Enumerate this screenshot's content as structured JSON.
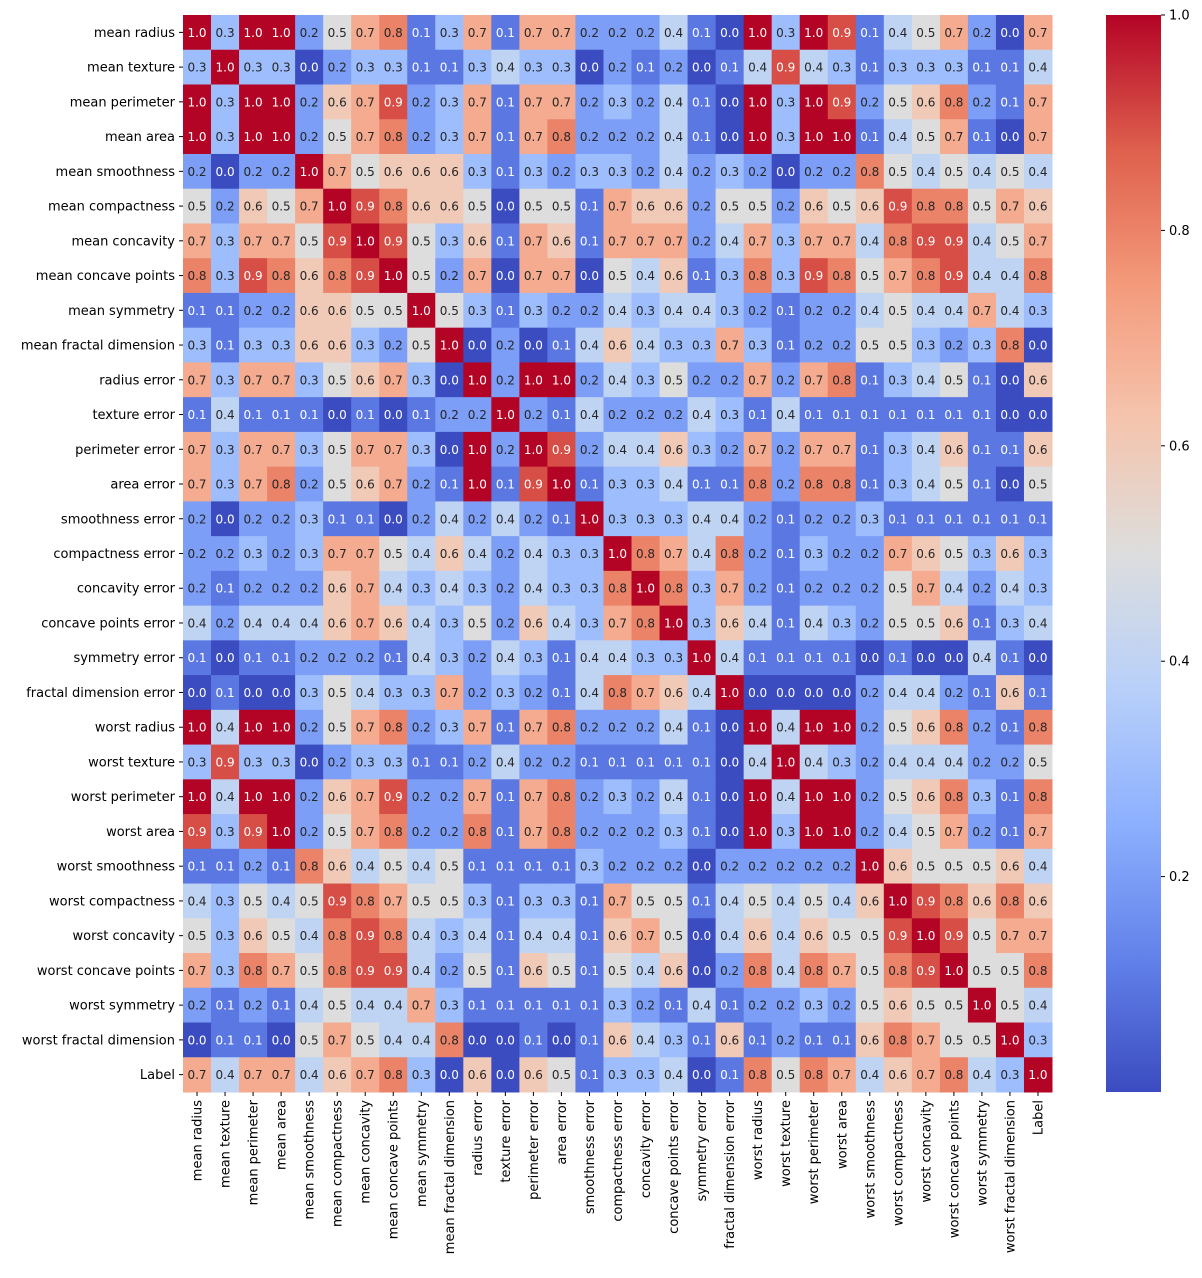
{
  "chart_data": {
    "type": "heatmap",
    "title": "",
    "colormap": "coolwarm",
    "labels": [
      "mean radius",
      "mean texture",
      "mean perimeter",
      "mean area",
      "mean smoothness",
      "mean compactness",
      "mean concavity",
      "mean concave points",
      "mean symmetry",
      "mean fractal dimension",
      "radius error",
      "texture error",
      "perimeter error",
      "area error",
      "smoothness error",
      "compactness error",
      "concavity error",
      "concave points error",
      "symmetry error",
      "fractal dimension error",
      "worst radius",
      "worst texture",
      "worst perimeter",
      "worst area",
      "worst smoothness",
      "worst compactness",
      "worst concavity",
      "worst concave points",
      "worst symmetry",
      "worst fractal dimension",
      "Label"
    ],
    "values": [
      [
        1.0,
        0.3,
        1.0,
        1.0,
        0.2,
        0.5,
        0.7,
        0.8,
        0.1,
        0.3,
        0.7,
        0.1,
        0.7,
        0.7,
        0.2,
        0.2,
        0.2,
        0.4,
        0.1,
        0.0,
        1.0,
        0.3,
        1.0,
        0.9,
        0.1,
        0.4,
        0.5,
        0.7,
        0.2,
        0.0,
        0.7
      ],
      [
        0.3,
        1.0,
        0.3,
        0.3,
        0.0,
        0.2,
        0.3,
        0.3,
        0.1,
        0.1,
        0.3,
        0.4,
        0.3,
        0.3,
        0.0,
        0.2,
        0.1,
        0.2,
        0.0,
        0.1,
        0.4,
        0.9,
        0.4,
        0.3,
        0.1,
        0.3,
        0.3,
        0.3,
        0.1,
        0.1,
        0.4
      ],
      [
        1.0,
        0.3,
        1.0,
        1.0,
        0.2,
        0.6,
        0.7,
        0.9,
        0.2,
        0.3,
        0.7,
        0.1,
        0.7,
        0.7,
        0.2,
        0.3,
        0.2,
        0.4,
        0.1,
        0.0,
        1.0,
        0.3,
        1.0,
        0.9,
        0.2,
        0.5,
        0.6,
        0.8,
        0.2,
        0.1,
        0.7
      ],
      [
        1.0,
        0.3,
        1.0,
        1.0,
        0.2,
        0.5,
        0.7,
        0.8,
        0.2,
        0.3,
        0.7,
        0.1,
        0.7,
        0.8,
        0.2,
        0.2,
        0.2,
        0.4,
        0.1,
        0.0,
        1.0,
        0.3,
        1.0,
        1.0,
        0.1,
        0.4,
        0.5,
        0.7,
        0.1,
        0.0,
        0.7
      ],
      [
        0.2,
        0.0,
        0.2,
        0.2,
        1.0,
        0.7,
        0.5,
        0.6,
        0.6,
        0.6,
        0.3,
        0.1,
        0.3,
        0.2,
        0.3,
        0.3,
        0.2,
        0.4,
        0.2,
        0.3,
        0.2,
        0.0,
        0.2,
        0.2,
        0.8,
        0.5,
        0.4,
        0.5,
        0.4,
        0.5,
        0.4
      ],
      [
        0.5,
        0.2,
        0.6,
        0.5,
        0.7,
        1.0,
        0.9,
        0.8,
        0.6,
        0.6,
        0.5,
        0.0,
        0.5,
        0.5,
        0.1,
        0.7,
        0.6,
        0.6,
        0.2,
        0.5,
        0.5,
        0.2,
        0.6,
        0.5,
        0.6,
        0.9,
        0.8,
        0.8,
        0.5,
        0.7,
        0.6
      ],
      [
        0.7,
        0.3,
        0.7,
        0.7,
        0.5,
        0.9,
        1.0,
        0.9,
        0.5,
        0.3,
        0.6,
        0.1,
        0.7,
        0.6,
        0.1,
        0.7,
        0.7,
        0.7,
        0.2,
        0.4,
        0.7,
        0.3,
        0.7,
        0.7,
        0.4,
        0.8,
        0.9,
        0.9,
        0.4,
        0.5,
        0.7
      ],
      [
        0.8,
        0.3,
        0.9,
        0.8,
        0.6,
        0.8,
        0.9,
        1.0,
        0.5,
        0.2,
        0.7,
        0.0,
        0.7,
        0.7,
        0.0,
        0.5,
        0.4,
        0.6,
        0.1,
        0.3,
        0.8,
        0.3,
        0.9,
        0.8,
        0.5,
        0.7,
        0.8,
        0.9,
        0.4,
        0.4,
        0.8
      ],
      [
        0.1,
        0.1,
        0.2,
        0.2,
        0.6,
        0.6,
        0.5,
        0.5,
        1.0,
        0.5,
        0.3,
        0.1,
        0.3,
        0.2,
        0.2,
        0.4,
        0.3,
        0.4,
        0.4,
        0.3,
        0.2,
        0.1,
        0.2,
        0.2,
        0.4,
        0.5,
        0.4,
        0.4,
        0.7,
        0.4,
        0.3
      ],
      [
        0.3,
        0.1,
        0.3,
        0.3,
        0.6,
        0.6,
        0.3,
        0.2,
        0.5,
        1.0,
        0.0,
        0.2,
        0.0,
        0.1,
        0.4,
        0.6,
        0.4,
        0.3,
        0.3,
        0.7,
        0.3,
        0.1,
        0.2,
        0.2,
        0.5,
        0.5,
        0.3,
        0.2,
        0.3,
        0.8,
        0.0
      ],
      [
        0.7,
        0.3,
        0.7,
        0.7,
        0.3,
        0.5,
        0.6,
        0.7,
        0.3,
        0.0,
        1.0,
        0.2,
        1.0,
        1.0,
        0.2,
        0.4,
        0.3,
        0.5,
        0.2,
        0.2,
        0.7,
        0.2,
        0.7,
        0.8,
        0.1,
        0.3,
        0.4,
        0.5,
        0.1,
        0.0,
        0.6
      ],
      [
        0.1,
        0.4,
        0.1,
        0.1,
        0.1,
        0.0,
        0.1,
        0.0,
        0.1,
        0.2,
        0.2,
        1.0,
        0.2,
        0.1,
        0.4,
        0.2,
        0.2,
        0.2,
        0.4,
        0.3,
        0.1,
        0.4,
        0.1,
        0.1,
        0.1,
        0.1,
        0.1,
        0.1,
        0.1,
        0.0,
        0.0
      ],
      [
        0.7,
        0.3,
        0.7,
        0.7,
        0.3,
        0.5,
        0.7,
        0.7,
        0.3,
        0.0,
        1.0,
        0.2,
        1.0,
        0.9,
        0.2,
        0.4,
        0.4,
        0.6,
        0.3,
        0.2,
        0.7,
        0.2,
        0.7,
        0.7,
        0.1,
        0.3,
        0.4,
        0.6,
        0.1,
        0.1,
        0.6
      ],
      [
        0.7,
        0.3,
        0.7,
        0.8,
        0.2,
        0.5,
        0.6,
        0.7,
        0.2,
        0.1,
        1.0,
        0.1,
        0.9,
        1.0,
        0.1,
        0.3,
        0.3,
        0.4,
        0.1,
        0.1,
        0.8,
        0.2,
        0.8,
        0.8,
        0.1,
        0.3,
        0.4,
        0.5,
        0.1,
        0.0,
        0.5
      ],
      [
        0.2,
        0.0,
        0.2,
        0.2,
        0.3,
        0.1,
        0.1,
        0.0,
        0.2,
        0.4,
        0.2,
        0.4,
        0.2,
        0.1,
        1.0,
        0.3,
        0.3,
        0.3,
        0.4,
        0.4,
        0.2,
        0.1,
        0.2,
        0.2,
        0.3,
        0.1,
        0.1,
        0.1,
        0.1,
        0.1,
        0.1
      ],
      [
        0.2,
        0.2,
        0.3,
        0.2,
        0.3,
        0.7,
        0.7,
        0.5,
        0.4,
        0.6,
        0.4,
        0.2,
        0.4,
        0.3,
        0.3,
        1.0,
        0.8,
        0.7,
        0.4,
        0.8,
        0.2,
        0.1,
        0.3,
        0.2,
        0.2,
        0.7,
        0.6,
        0.5,
        0.3,
        0.6,
        0.3
      ],
      [
        0.2,
        0.1,
        0.2,
        0.2,
        0.2,
        0.6,
        0.7,
        0.4,
        0.3,
        0.4,
        0.3,
        0.2,
        0.4,
        0.3,
        0.3,
        0.8,
        1.0,
        0.8,
        0.3,
        0.7,
        0.2,
        0.1,
        0.2,
        0.2,
        0.2,
        0.5,
        0.7,
        0.4,
        0.2,
        0.4,
        0.3
      ],
      [
        0.4,
        0.2,
        0.4,
        0.4,
        0.4,
        0.6,
        0.7,
        0.6,
        0.4,
        0.3,
        0.5,
        0.2,
        0.6,
        0.4,
        0.3,
        0.7,
        0.8,
        1.0,
        0.3,
        0.6,
        0.4,
        0.1,
        0.4,
        0.3,
        0.2,
        0.5,
        0.5,
        0.6,
        0.1,
        0.3,
        0.4
      ],
      [
        0.1,
        0.0,
        0.1,
        0.1,
        0.2,
        0.2,
        0.2,
        0.1,
        0.4,
        0.3,
        0.2,
        0.4,
        0.3,
        0.1,
        0.4,
        0.4,
        0.3,
        0.3,
        1.0,
        0.4,
        0.1,
        0.1,
        0.1,
        0.1,
        0.0,
        0.1,
        0.0,
        0.0,
        0.4,
        0.1,
        0.0
      ],
      [
        0.0,
        0.1,
        0.0,
        0.0,
        0.3,
        0.5,
        0.4,
        0.3,
        0.3,
        0.7,
        0.2,
        0.3,
        0.2,
        0.1,
        0.4,
        0.8,
        0.7,
        0.6,
        0.4,
        1.0,
        0.0,
        0.0,
        0.0,
        0.0,
        0.2,
        0.4,
        0.4,
        0.2,
        0.1,
        0.6,
        0.1
      ],
      [
        1.0,
        0.4,
        1.0,
        1.0,
        0.2,
        0.5,
        0.7,
        0.8,
        0.2,
        0.3,
        0.7,
        0.1,
        0.7,
        0.8,
        0.2,
        0.2,
        0.2,
        0.4,
        0.1,
        0.0,
        1.0,
        0.4,
        1.0,
        1.0,
        0.2,
        0.5,
        0.6,
        0.8,
        0.2,
        0.1,
        0.8
      ],
      [
        0.3,
        0.9,
        0.3,
        0.3,
        0.0,
        0.2,
        0.3,
        0.3,
        0.1,
        0.1,
        0.2,
        0.4,
        0.2,
        0.2,
        0.1,
        0.1,
        0.1,
        0.1,
        0.1,
        0.0,
        0.4,
        1.0,
        0.4,
        0.3,
        0.2,
        0.4,
        0.4,
        0.4,
        0.2,
        0.2,
        0.5
      ],
      [
        1.0,
        0.4,
        1.0,
        1.0,
        0.2,
        0.6,
        0.7,
        0.9,
        0.2,
        0.2,
        0.7,
        0.1,
        0.7,
        0.8,
        0.2,
        0.3,
        0.2,
        0.4,
        0.1,
        0.0,
        1.0,
        0.4,
        1.0,
        1.0,
        0.2,
        0.5,
        0.6,
        0.8,
        0.3,
        0.1,
        0.8
      ],
      [
        0.9,
        0.3,
        0.9,
        1.0,
        0.2,
        0.5,
        0.7,
        0.8,
        0.2,
        0.2,
        0.8,
        0.1,
        0.7,
        0.8,
        0.2,
        0.2,
        0.2,
        0.3,
        0.1,
        0.0,
        1.0,
        0.3,
        1.0,
        1.0,
        0.2,
        0.4,
        0.5,
        0.7,
        0.2,
        0.1,
        0.7
      ],
      [
        0.1,
        0.1,
        0.2,
        0.1,
        0.8,
        0.6,
        0.4,
        0.5,
        0.4,
        0.5,
        0.1,
        0.1,
        0.1,
        0.1,
        0.3,
        0.2,
        0.2,
        0.2,
        0.0,
        0.2,
        0.2,
        0.2,
        0.2,
        0.2,
        1.0,
        0.6,
        0.5,
        0.5,
        0.5,
        0.6,
        0.4
      ],
      [
        0.4,
        0.3,
        0.5,
        0.4,
        0.5,
        0.9,
        0.8,
        0.7,
        0.5,
        0.5,
        0.3,
        0.1,
        0.3,
        0.3,
        0.1,
        0.7,
        0.5,
        0.5,
        0.1,
        0.4,
        0.5,
        0.4,
        0.5,
        0.4,
        0.6,
        1.0,
        0.9,
        0.8,
        0.6,
        0.8,
        0.6
      ],
      [
        0.5,
        0.3,
        0.6,
        0.5,
        0.4,
        0.8,
        0.9,
        0.8,
        0.4,
        0.3,
        0.4,
        0.1,
        0.4,
        0.4,
        0.1,
        0.6,
        0.7,
        0.5,
        0.0,
        0.4,
        0.6,
        0.4,
        0.6,
        0.5,
        0.5,
        0.9,
        1.0,
        0.9,
        0.5,
        0.7,
        0.7
      ],
      [
        0.7,
        0.3,
        0.8,
        0.7,
        0.5,
        0.8,
        0.9,
        0.9,
        0.4,
        0.2,
        0.5,
        0.1,
        0.6,
        0.5,
        0.1,
        0.5,
        0.4,
        0.6,
        0.0,
        0.2,
        0.8,
        0.4,
        0.8,
        0.7,
        0.5,
        0.8,
        0.9,
        1.0,
        0.5,
        0.5,
        0.8
      ],
      [
        0.2,
        0.1,
        0.2,
        0.1,
        0.4,
        0.5,
        0.4,
        0.4,
        0.7,
        0.3,
        0.1,
        0.1,
        0.1,
        0.1,
        0.1,
        0.3,
        0.2,
        0.1,
        0.4,
        0.1,
        0.2,
        0.2,
        0.3,
        0.2,
        0.5,
        0.6,
        0.5,
        0.5,
        1.0,
        0.5,
        0.4
      ],
      [
        0.0,
        0.1,
        0.1,
        0.0,
        0.5,
        0.7,
        0.5,
        0.4,
        0.4,
        0.8,
        0.0,
        0.0,
        0.1,
        0.0,
        0.1,
        0.6,
        0.4,
        0.3,
        0.1,
        0.6,
        0.1,
        0.2,
        0.1,
        0.1,
        0.6,
        0.8,
        0.7,
        0.5,
        0.5,
        1.0,
        0.3
      ],
      [
        0.7,
        0.4,
        0.7,
        0.7,
        0.4,
        0.6,
        0.7,
        0.8,
        0.3,
        0.0,
        0.6,
        0.0,
        0.6,
        0.5,
        0.1,
        0.3,
        0.3,
        0.4,
        0.0,
        0.1,
        0.8,
        0.5,
        0.8,
        0.7,
        0.4,
        0.6,
        0.7,
        0.8,
        0.4,
        0.3,
        1.0
      ]
    ],
    "colorbar": {
      "vmin": 0.0,
      "vmax": 1.0,
      "ticks": [
        0.2,
        0.4,
        0.6,
        0.8,
        1.0
      ],
      "tick_labels": [
        "0.2",
        "0.4",
        "0.6",
        "0.8",
        "1.0"
      ]
    },
    "xlabel": "",
    "ylabel": ""
  }
}
